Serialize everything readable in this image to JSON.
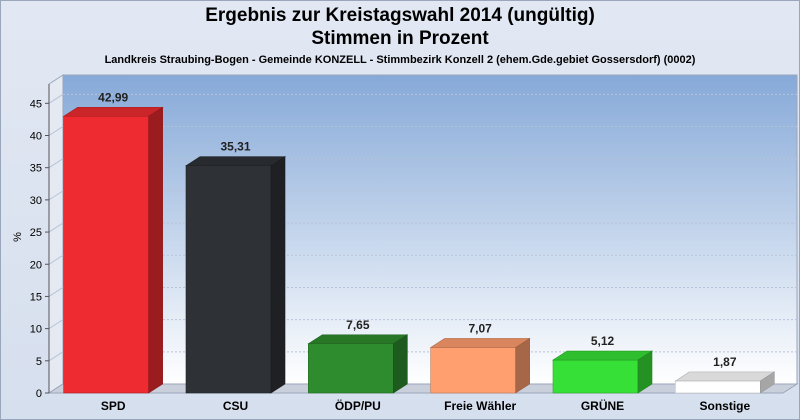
{
  "chart_data": {
    "type": "bar",
    "title_line1": "Ergebnis zur Kreistagswahl 2014 (ungültig)",
    "title_line2": "Stimmen in Prozent",
    "subtitle": "Landkreis Straubing-Bogen - Gemeinde KONZELL - Stimmbezirk Konzell 2 (ehem.Gde.gebiet Gossersdorf) (0002)",
    "ylabel": "%",
    "ylim": [
      0,
      48
    ],
    "yticks": [
      0,
      5,
      10,
      15,
      20,
      25,
      30,
      35,
      40,
      45
    ],
    "grid": true,
    "categories": [
      "SPD",
      "CSU",
      "ÖDP/PU",
      "Freie Wähler",
      "GRÜNE",
      "Sonstige"
    ],
    "values": [
      42.99,
      35.31,
      7.65,
      7.07,
      5.12,
      1.87
    ],
    "value_labels": [
      "42,99",
      "35,31",
      "7,65",
      "7,07",
      "5,12",
      "1,87"
    ],
    "colors": [
      "#ee2b30",
      "#2e3136",
      "#2e8c2e",
      "#ff9e6e",
      "#36e036",
      "#ffffff"
    ]
  }
}
